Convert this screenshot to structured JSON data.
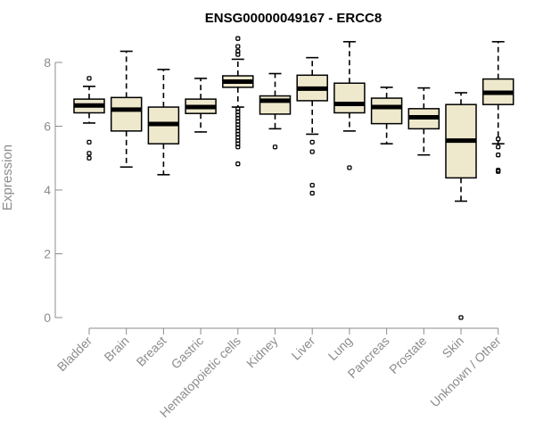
{
  "chart_data": {
    "type": "boxplot",
    "title": "ENSG00000049167 - ERCC8",
    "xlabel": "",
    "ylabel": "Expression",
    "ylim": [
      0,
      8.7
    ],
    "yticks": [
      0,
      2,
      4,
      6,
      8
    ],
    "grid": false,
    "legend": "none",
    "colors": {
      "box_fill": "#eee8cd",
      "box_stroke": "#000000",
      "axis": "#8c8c8c",
      "title": "#000000"
    },
    "categories": [
      "Bladder",
      "Brain",
      "Breast",
      "Gastric",
      "Hematopoietic cells",
      "Kidney",
      "Liver",
      "Lung",
      "Pancreas",
      "Prostate",
      "Skin",
      "Unknown / Other"
    ],
    "boxes": [
      {
        "q1": 6.42,
        "median": 6.65,
        "q3": 6.85,
        "whisker_low": 6.1,
        "whisker_high": 7.25,
        "outliers": [
          7.5,
          5.5,
          5.15,
          5.0
        ]
      },
      {
        "q1": 5.85,
        "median": 6.52,
        "q3": 6.9,
        "whisker_low": 4.72,
        "whisker_high": 8.35,
        "outliers": []
      },
      {
        "q1": 5.45,
        "median": 6.07,
        "q3": 6.6,
        "whisker_low": 4.48,
        "whisker_high": 7.78,
        "outliers": []
      },
      {
        "q1": 6.4,
        "median": 6.6,
        "q3": 6.85,
        "whisker_low": 5.82,
        "whisker_high": 7.5,
        "outliers": []
      },
      {
        "q1": 7.22,
        "median": 7.4,
        "q3": 7.58,
        "whisker_low": 6.6,
        "whisker_high": 8.1,
        "outliers": [
          8.75,
          8.5,
          8.35,
          8.25,
          6.55,
          6.45,
          6.35,
          6.25,
          6.15,
          6.05,
          5.95,
          5.85,
          5.75,
          5.65,
          5.55,
          5.45,
          5.35,
          4.82
        ]
      },
      {
        "q1": 6.38,
        "median": 6.8,
        "q3": 6.95,
        "whisker_low": 5.92,
        "whisker_high": 7.65,
        "outliers": [
          5.35
        ]
      },
      {
        "q1": 6.8,
        "median": 7.18,
        "q3": 7.6,
        "whisker_low": 5.75,
        "whisker_high": 8.15,
        "outliers": [
          5.5,
          5.2,
          4.15,
          3.9
        ]
      },
      {
        "q1": 6.42,
        "median": 6.7,
        "q3": 7.35,
        "whisker_low": 5.85,
        "whisker_high": 8.65,
        "outliers": [
          4.7
        ]
      },
      {
        "q1": 6.08,
        "median": 6.6,
        "q3": 6.88,
        "whisker_low": 5.45,
        "whisker_high": 7.22,
        "outliers": []
      },
      {
        "q1": 5.92,
        "median": 6.28,
        "q3": 6.55,
        "whisker_low": 5.1,
        "whisker_high": 7.2,
        "outliers": []
      },
      {
        "q1": 4.38,
        "median": 5.55,
        "q3": 6.68,
        "whisker_low": 3.65,
        "whisker_high": 7.05,
        "outliers": [
          0
        ]
      },
      {
        "q1": 6.68,
        "median": 7.05,
        "q3": 7.48,
        "whisker_low": 5.45,
        "whisker_high": 8.65,
        "outliers": [
          5.6,
          5.35,
          5.1,
          4.62,
          4.58
        ]
      }
    ]
  }
}
